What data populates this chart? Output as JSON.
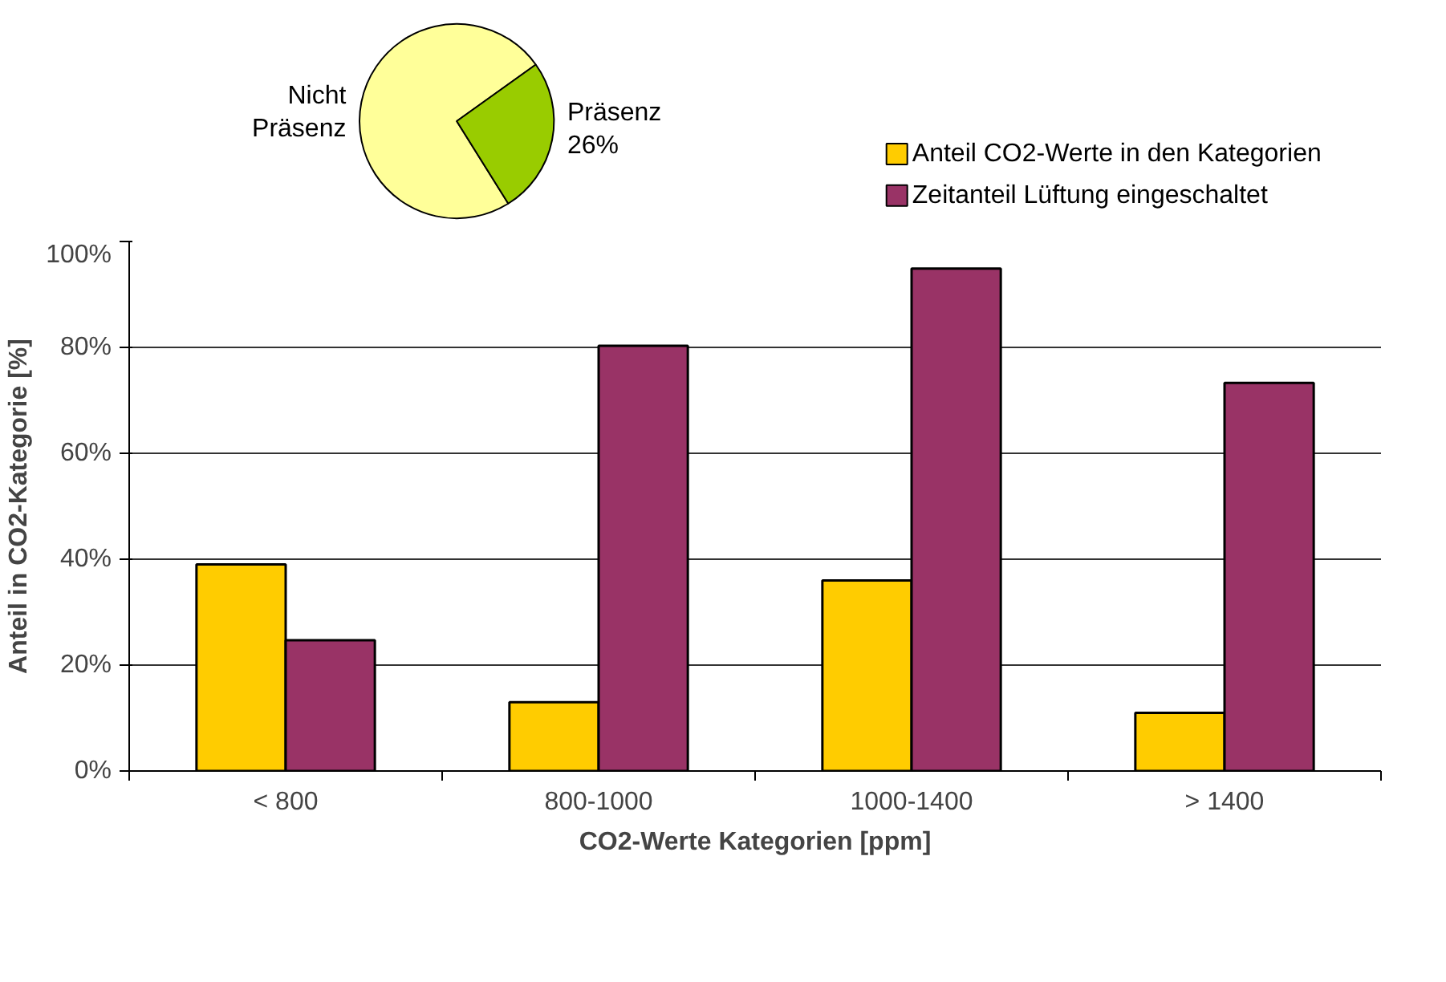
{
  "chart_data": [
    {
      "type": "pie",
      "categories": [
        "Nicht Präsenz",
        "Präsenz"
      ],
      "values": [
        74,
        26
      ],
      "colors": [
        "#ffff99",
        "#99cc00"
      ],
      "value_labels": [
        null,
        "26%"
      ]
    },
    {
      "type": "bar",
      "categories": [
        "< 800",
        "800-1000",
        "1000-1400",
        "> 1400"
      ],
      "series": [
        {
          "name": "Anteil CO2-Werte in den Kategorien",
          "color": "#ffcc00",
          "values": [
            39,
            13,
            36,
            11
          ]
        },
        {
          "name": "Zeitanteil Lüftung eingeschaltet",
          "color": "#993366",
          "values": [
            24.7,
            80.3,
            94.9,
            73.3
          ]
        }
      ],
      "xlabel": "CO2-Werte Kategorien [ppm]",
      "ylabel": "Anteil in CO2-Kategorie [%]",
      "ylim": [
        0,
        100
      ],
      "yticks": [
        {
          "value": 0,
          "label": "0%"
        },
        {
          "value": 20,
          "label": "20%"
        },
        {
          "value": 40,
          "label": "40%"
        },
        {
          "value": 60,
          "label": "60%"
        },
        {
          "value": 80,
          "label": "80%"
        },
        {
          "value": 100,
          "label": "100%"
        }
      ],
      "grid": "y",
      "legend": "top right"
    }
  ]
}
